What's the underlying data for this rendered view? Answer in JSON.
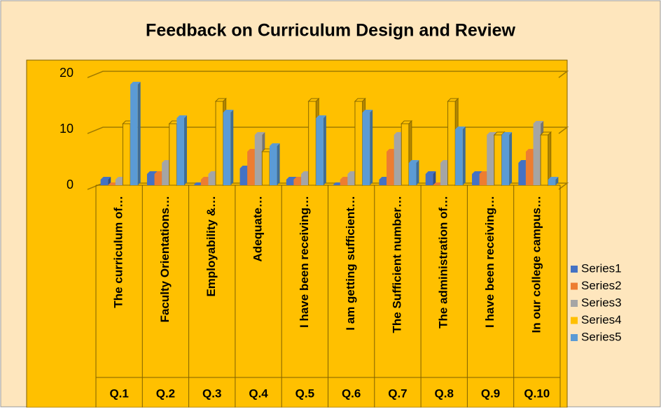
{
  "chart_data": {
    "type": "bar3d",
    "title": "Feedback on Curriculum Design and Review",
    "categories": [
      "The curriculum of…",
      "Faculty Orientations…",
      "Employability &…",
      "Adequate…",
      "I have been receiving…",
      "I am getting sufficient…",
      "The Sufficient number…",
      "The administration of…",
      "I have been receiving…",
      "In our college campus…"
    ],
    "groups": [
      "Q.1",
      "Q.2",
      "Q.3",
      "Q.4",
      "Q.5",
      "Q.6",
      "Q.7",
      "Q.8",
      "Q.9",
      "Q.10"
    ],
    "series": [
      {
        "name": "Series1",
        "color": "#4472c4",
        "values": [
          1,
          2,
          0,
          3,
          1,
          0,
          1,
          2,
          2,
          4
        ]
      },
      {
        "name": "Series2",
        "color": "#ed7d31",
        "values": [
          0,
          2,
          1,
          6,
          1,
          1,
          6,
          0,
          2,
          6
        ]
      },
      {
        "name": "Series3",
        "color": "#a5a5a5",
        "values": [
          1,
          4,
          2,
          9,
          2,
          2,
          9,
          4,
          9,
          11
        ]
      },
      {
        "name": "Series4",
        "color": "#ffc000",
        "values": [
          11,
          11,
          15,
          6,
          15,
          15,
          11,
          15,
          9,
          9
        ]
      },
      {
        "name": "Series5",
        "color": "#5b9bd5",
        "values": [
          18,
          12,
          13,
          7,
          12,
          13,
          4,
          10,
          9,
          1
        ]
      }
    ],
    "ylim": [
      0,
      20
    ],
    "yticks": [
      0,
      10,
      20
    ],
    "grid": true,
    "legend": "right"
  }
}
